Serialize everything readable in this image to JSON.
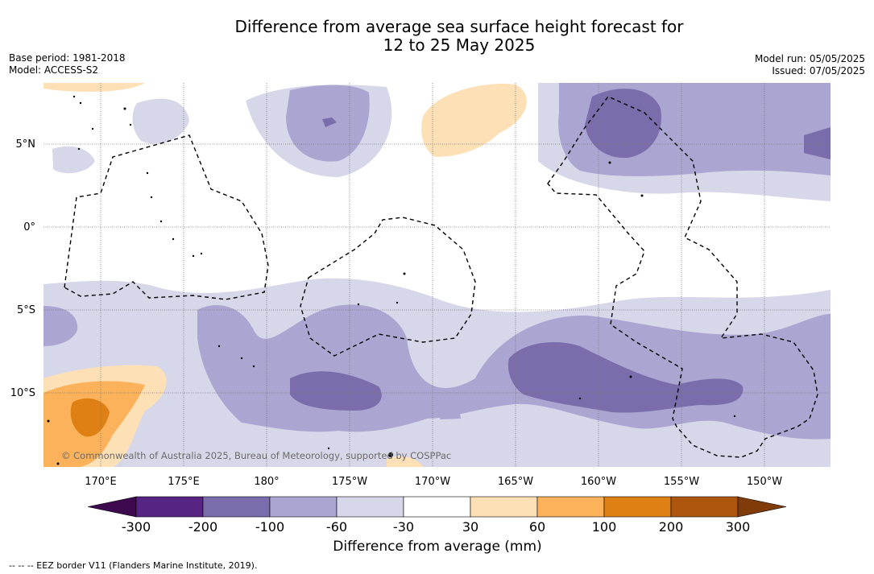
{
  "title_line1": "Difference from average sea surface height forecast for",
  "title_line2": "12 to 25 May 2025",
  "base_period": "Base period: 1981-2018",
  "model": "Model: ACCESS-S2",
  "model_run": "Model run: 05/05/2025",
  "issued": "Issued: 07/05/2025",
  "copyright": "© Commonwealth of Australia 2025, Bureau of Meteorology, supported by COSPPac",
  "lat_labels": [
    "5°N",
    "0°",
    "5°S",
    "10°S"
  ],
  "lon_labels": [
    "170°E",
    "175°E",
    "180°",
    "175°W",
    "170°W",
    "165°W",
    "160°W",
    "155°W",
    "150°W"
  ],
  "colorbar": {
    "title": "Difference from average (mm)",
    "ticks": [
      "-300",
      "-200",
      "-100",
      "-60",
      "-30",
      "30",
      "60",
      "100",
      "200",
      "300"
    ],
    "colors": [
      "#3d0a4f",
      "#562483",
      "#7b6dab",
      "#aba6d1",
      "#d7d7ea",
      "#ffffff",
      "#fde0b6",
      "#fbb25a",
      "#df8014",
      "#ad570e",
      "#7f3b08"
    ]
  },
  "legend_note": "--  --  -- EEZ border V11 (Flanders Marine Institute, 2019)."
}
